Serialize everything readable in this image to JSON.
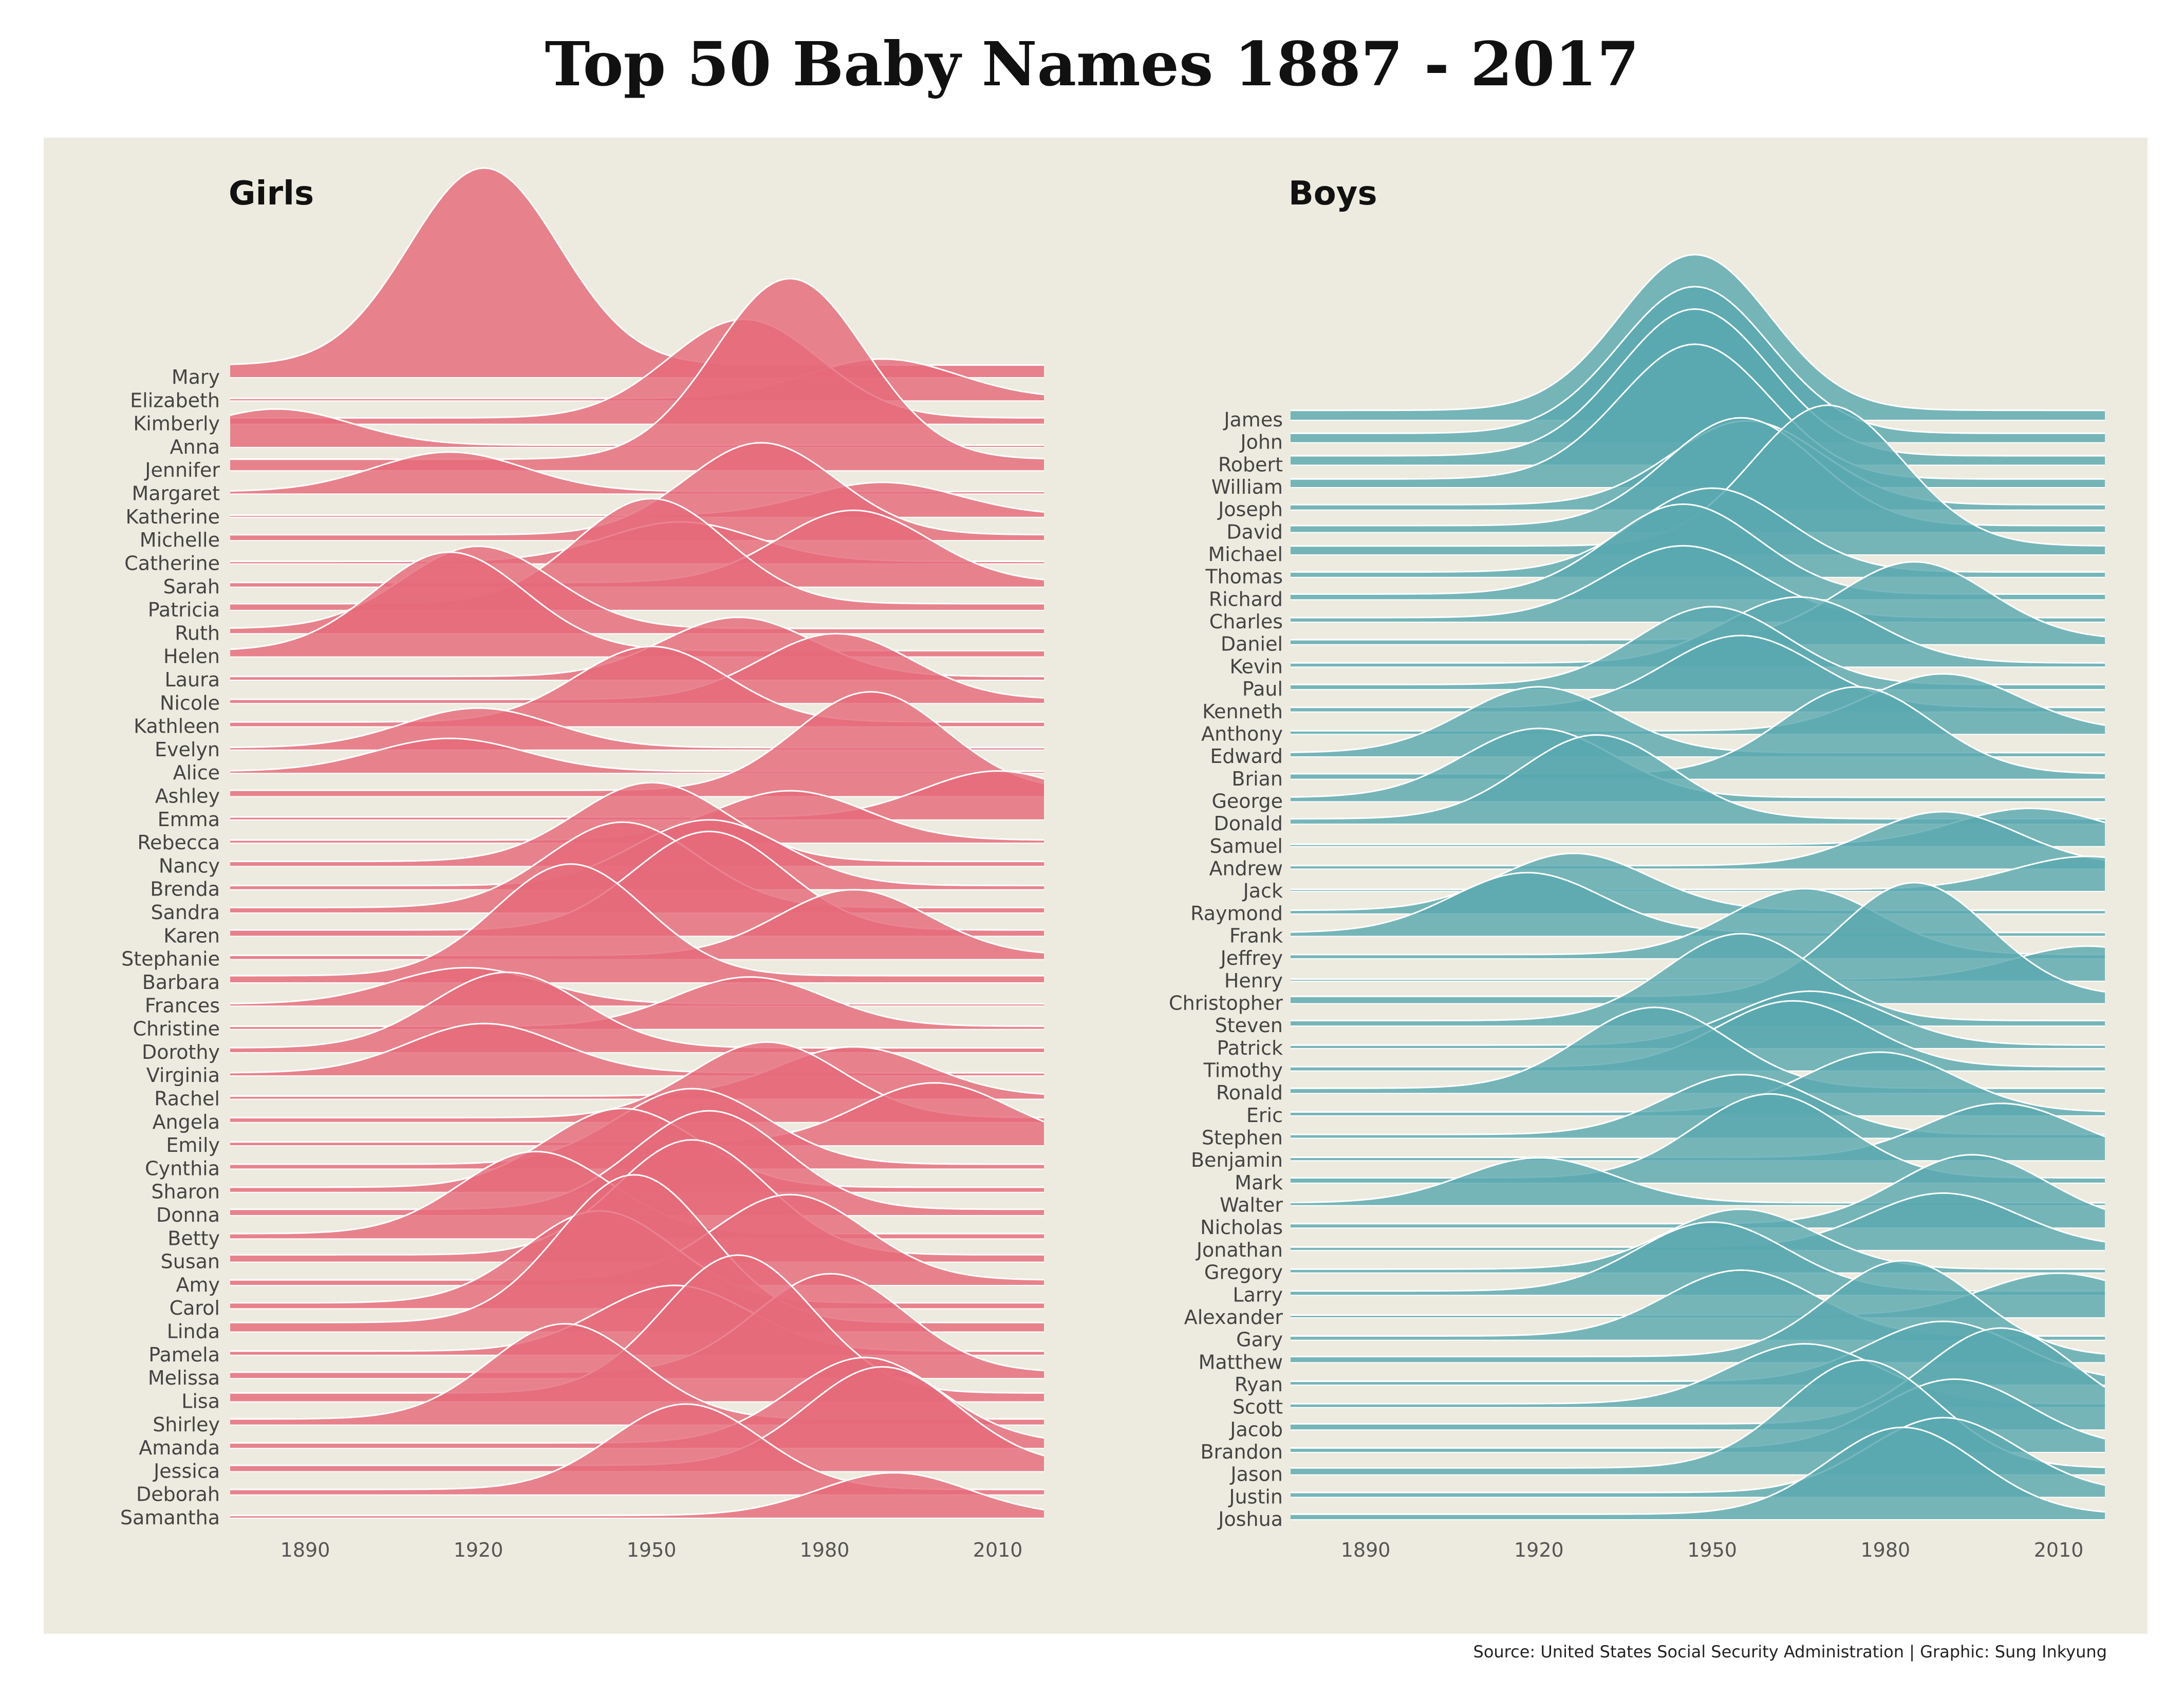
{
  "title": "Top 50 Baby Names 1887 - 2017",
  "source": "Source: United States Social Security Administration | Graphic: Sung Inkyung",
  "colors": {
    "girls": "#e56a7a",
    "boys": "#5aa8b0",
    "background": "#edebdf",
    "ridge_outline": "#ffffff"
  },
  "chart_data": [
    {
      "type": "area",
      "subtype": "ridgeline",
      "title": "Girls",
      "xlim": [
        1877,
        2018
      ],
      "xticks": [
        1890,
        1920,
        1950,
        1980,
        2010
      ],
      "names": [
        "Mary",
        "Elizabeth",
        "Kimberly",
        "Anna",
        "Jennifer",
        "Margaret",
        "Katherine",
        "Michelle",
        "Catherine",
        "Sarah",
        "Patricia",
        "Ruth",
        "Helen",
        "Laura",
        "Nicole",
        "Kathleen",
        "Evelyn",
        "Alice",
        "Ashley",
        "Emma",
        "Rebecca",
        "Nancy",
        "Brenda",
        "Sandra",
        "Karen",
        "Stephanie",
        "Barbara",
        "Frances",
        "Christine",
        "Dorothy",
        "Virginia",
        "Rachel",
        "Angela",
        "Emily",
        "Cynthia",
        "Sharon",
        "Donna",
        "Betty",
        "Susan",
        "Amy",
        "Carol",
        "Linda",
        "Pamela",
        "Melissa",
        "Lisa",
        "Shirley",
        "Amanda",
        "Jessica",
        "Deborah",
        "Samantha"
      ],
      "peak_years": [
        1921,
        1990,
        1966,
        1885,
        1974,
        1915,
        1990,
        1969,
        1955,
        1985,
        1950,
        1920,
        1915,
        1965,
        1982,
        1950,
        1920,
        1915,
        1988,
        2010,
        1974,
        1950,
        1960,
        1945,
        1960,
        1985,
        1936,
        1918,
        1967,
        1925,
        1921,
        1985,
        1970,
        1999,
        1957,
        1945,
        1960,
        1930,
        1957,
        1974,
        1941,
        1947,
        1954,
        1981,
        1965,
        1935,
        1987,
        1990,
        1956,
        1992
      ],
      "peak_heights": [
        6.0,
        1.2,
        3.0,
        1.1,
        5.5,
        1.2,
        1.0,
        2.8,
        1.2,
        2.2,
        3.2,
        2.5,
        3.0,
        1.8,
        2.0,
        2.3,
        1.2,
        1.0,
        3.0,
        1.4,
        1.5,
        2.4,
        2.0,
        2.6,
        3.0,
        2.0,
        3.4,
        1.1,
        1.5,
        2.3,
        1.5,
        1.5,
        2.3,
        1.8,
        2.3,
        2.4,
        3.0,
        2.5,
        3.5,
        2.6,
        2.8,
        4.5,
        2.0,
        3.0,
        4.2,
        2.9,
        2.6,
        3.0,
        2.6,
        1.3
      ]
    },
    {
      "type": "area",
      "subtype": "ridgeline",
      "title": "Boys",
      "xlim": [
        1877,
        2018
      ],
      "xticks": [
        1890,
        1920,
        1950,
        1980,
        2010
      ],
      "names": [
        "James",
        "John",
        "Robert",
        "William",
        "Joseph",
        "David",
        "Michael",
        "Thomas",
        "Richard",
        "Charles",
        "Daniel",
        "Kevin",
        "Paul",
        "Kenneth",
        "Anthony",
        "Edward",
        "Brian",
        "George",
        "Donald",
        "Samuel",
        "Andrew",
        "Jack",
        "Raymond",
        "Frank",
        "Jeffrey",
        "Henry",
        "Christopher",
        "Steven",
        "Patrick",
        "Timothy",
        "Ronald",
        "Eric",
        "Stephen",
        "Benjamin",
        "Mark",
        "Walter",
        "Nicholas",
        "Jonathan",
        "Gregory",
        "Larry",
        "Alexander",
        "Gary",
        "Matthew",
        "Ryan",
        "Scott",
        "Jacob",
        "Brandon",
        "Jason",
        "Justin",
        "Joshua"
      ],
      "peak_years": [
        1947,
        1947,
        1947,
        1947,
        1956,
        1955,
        1970,
        1950,
        1945,
        1945,
        1985,
        1965,
        1950,
        1955,
        1990,
        1920,
        1975,
        1920,
        1930,
        2005,
        1990,
        2015,
        1926,
        1918,
        1966,
        2015,
        1985,
        1955,
        1967,
        1964,
        1940,
        1979,
        1955,
        2000,
        1960,
        1920,
        1995,
        1990,
        1955,
        1950,
        2010,
        1955,
        1983,
        1990,
        1966,
        2000,
        1992,
        1976,
        1990,
        1983
      ],
      "peak_heights": [
        5.2,
        4.9,
        4.9,
        4.5,
        2.8,
        3.6,
        4.7,
        2.8,
        3.0,
        2.4,
        2.6,
        2.2,
        2.6,
        2.4,
        1.9,
        2.2,
        2.9,
        2.3,
        2.8,
        1.2,
        1.8,
        1.1,
        1.9,
        2.0,
        2.2,
        1.1,
        3.8,
        2.9,
        1.8,
        2.2,
        2.7,
        2.0,
        2.0,
        1.8,
        2.8,
        1.5,
        2.3,
        1.8,
        2.0,
        2.3,
        1.4,
        2.2,
        3.2,
        2.0,
        2.0,
        3.2,
        2.3,
        3.6,
        2.5,
        2.9
      ]
    }
  ]
}
